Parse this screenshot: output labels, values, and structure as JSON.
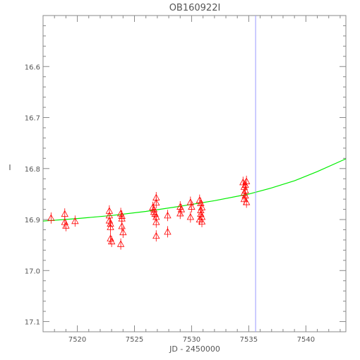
{
  "chart_data": {
    "type": "scatter",
    "title": "OB160922I",
    "xlabel": "JD - 2450000",
    "ylabel": "I",
    "xlim": [
      7517.0,
      7543.5
    ],
    "ylim": [
      16.5,
      17.12
    ],
    "y_inverted": true,
    "x_ticks": [
      7520,
      7525,
      7530,
      7535,
      7540
    ],
    "x_tick_labels": [
      "7520",
      "7525",
      "7530",
      "7535",
      "7540"
    ],
    "y_ticks": [
      16.6,
      16.7,
      16.8,
      16.9,
      17.0,
      17.1
    ],
    "y_tick_labels": [
      "16.6",
      "16.7",
      "16.8",
      "16.9",
      "17.0",
      "17.1"
    ],
    "vertical_line_x": 7535.6,
    "grid": false,
    "colors": {
      "points": "#ff0000",
      "model": "#00ee00",
      "vline": "#9999ff",
      "axis": "#888888"
    },
    "series": [
      {
        "marker": "triangle-up",
        "points": [
          [
            7517.7,
            16.897
          ],
          [
            7518.9,
            16.889
          ],
          [
            7518.9,
            16.905
          ],
          [
            7519.0,
            16.912
          ],
          [
            7519.8,
            16.903
          ],
          [
            7522.8,
            16.883
          ],
          [
            7522.8,
            16.892
          ],
          [
            7522.8,
            16.902
          ],
          [
            7522.9,
            16.908
          ],
          [
            7522.9,
            16.915
          ],
          [
            7522.9,
            16.937
          ],
          [
            7523.0,
            16.943
          ],
          [
            7523.8,
            16.888
          ],
          [
            7523.9,
            16.893
          ],
          [
            7523.9,
            16.898
          ],
          [
            7523.9,
            16.913
          ],
          [
            7524.0,
            16.925
          ],
          [
            7523.8,
            16.948
          ],
          [
            7526.6,
            16.876
          ],
          [
            7526.7,
            16.88
          ],
          [
            7526.7,
            16.885
          ],
          [
            7526.8,
            16.889
          ],
          [
            7526.9,
            16.867
          ],
          [
            7526.9,
            16.857
          ],
          [
            7526.9,
            16.895
          ],
          [
            7526.9,
            16.905
          ],
          [
            7526.9,
            16.932
          ],
          [
            7527.9,
            16.892
          ],
          [
            7527.9,
            16.924
          ],
          [
            7529.0,
            16.875
          ],
          [
            7529.1,
            16.88
          ],
          [
            7529.0,
            16.888
          ],
          [
            7529.9,
            16.866
          ],
          [
            7530.0,
            16.875
          ],
          [
            7529.9,
            16.895
          ],
          [
            7530.7,
            16.862
          ],
          [
            7530.8,
            16.868
          ],
          [
            7530.9,
            16.876
          ],
          [
            7530.8,
            16.882
          ],
          [
            7530.8,
            16.889
          ],
          [
            7530.9,
            16.895
          ],
          [
            7530.7,
            16.9
          ],
          [
            7530.9,
            16.904
          ],
          [
            7534.5,
            16.827
          ],
          [
            7534.6,
            16.836
          ],
          [
            7534.7,
            16.843
          ],
          [
            7534.6,
            16.848
          ],
          [
            7534.8,
            16.825
          ],
          [
            7534.7,
            16.853
          ],
          [
            7534.6,
            16.86
          ],
          [
            7534.8,
            16.866
          ],
          [
            7534.7,
            16.832
          ]
        ],
        "error": 0.011
      }
    ],
    "model_curve": {
      "x": [
        7517.0,
        7520,
        7523,
        7526,
        7529,
        7532,
        7535,
        7537,
        7539,
        7541,
        7543.5
      ],
      "y": [
        16.903,
        16.898,
        16.892,
        16.884,
        16.874,
        16.863,
        16.85,
        16.838,
        16.824,
        16.806,
        16.781
      ]
    }
  }
}
